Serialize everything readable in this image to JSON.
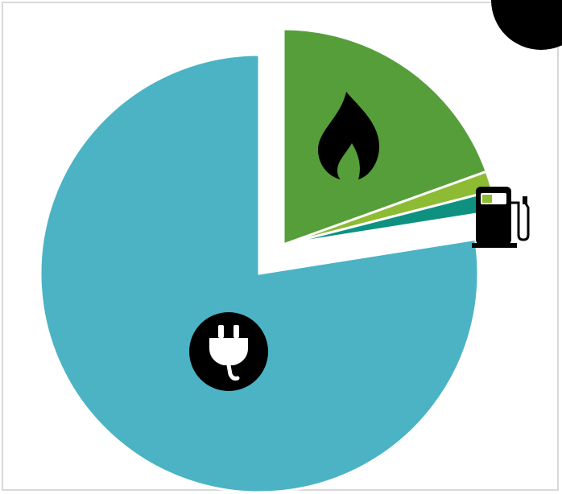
{
  "chart_data": {
    "type": "pie",
    "title": "",
    "legend": "none",
    "slices": [
      {
        "icon": "electric-plug-icon",
        "value": 77.5,
        "color": "#4bb3c4",
        "exploded": false
      },
      {
        "icon": "gas-flame-icon",
        "value": 19.5,
        "color": "#569e3a",
        "exploded": true
      },
      {
        "icon": "fuel-pump-icon",
        "value": 1.5,
        "color": "#8dbb33",
        "exploded": true
      },
      {
        "icon": "fuel-pump-icon",
        "value": 1.5,
        "color": "#0e9180",
        "exploded": true
      }
    ]
  },
  "colors": {
    "icon": "#000000",
    "icon_detail": "#ffffff",
    "frame_border": "#d9d9d9"
  }
}
